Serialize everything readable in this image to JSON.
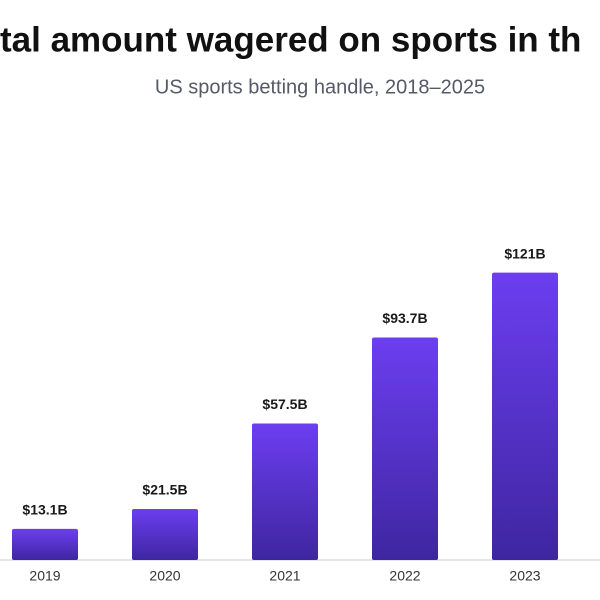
{
  "chart_data": {
    "type": "bar",
    "title": "tal amount wagered on sports in th",
    "subtitle": "US sports betting handle, 2018–2025",
    "categories": [
      "2019",
      "2020",
      "2021",
      "2022",
      "2023"
    ],
    "values": [
      13.1,
      21.5,
      57.5,
      93.7,
      121
    ],
    "value_labels": [
      "$13.1B",
      "$21.5B",
      "$57.5B",
      "$93.7B",
      "$121B"
    ],
    "color": "#6c3ef0",
    "ylim": [
      0,
      160
    ]
  }
}
